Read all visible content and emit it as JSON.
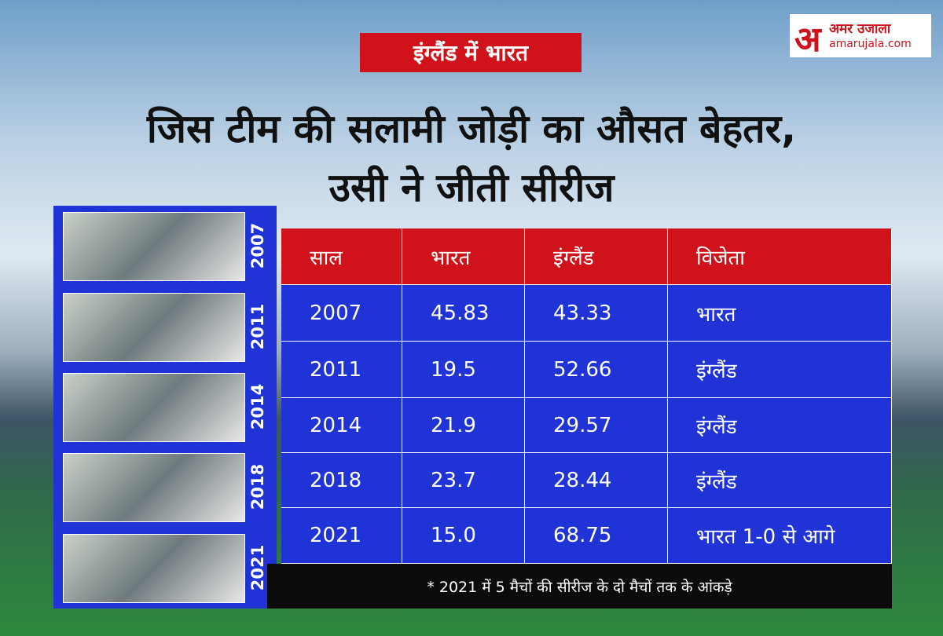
{
  "header": {
    "tag": "इंग्लैंड में भारत",
    "title_lines": [
      "जिस टीम की सलामी जोड़ी का औसत बेहतर,",
      "उसी ने जीती सीरीज"
    ]
  },
  "logo": {
    "mark": "अ",
    "name": "अमर उजाला",
    "site": "amarujala.com"
  },
  "photos": [
    "2007",
    "2011",
    "2014",
    "2018",
    "2021"
  ],
  "table": {
    "columns": [
      "साल",
      "भारत",
      "इंग्लैंड",
      "विजेता"
    ],
    "rows": [
      [
        "2007",
        "45.83",
        "43.33",
        "भारत"
      ],
      [
        "2011",
        "19.5",
        "52.66",
        "इंग्लैंड"
      ],
      [
        "2014",
        "21.9",
        "29.57",
        "इंग्लैंड"
      ],
      [
        "2018",
        "23.7",
        "28.44",
        "इंग्लैंड"
      ],
      [
        "2021",
        "15.0",
        "68.75",
        "भारत 1-0 से आगे"
      ]
    ]
  },
  "footnote": "* 2021 में 5 मैचों की सीरीज के दो मैचों तक के आंकड़े"
}
